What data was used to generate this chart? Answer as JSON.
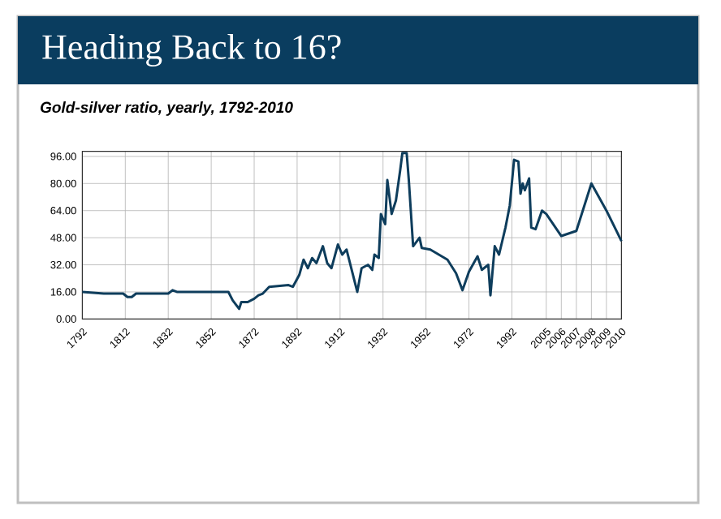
{
  "chart_data": {
    "type": "line",
    "title": "Heading Back to 16?",
    "subtitle": "Gold-silver ratio, yearly, 1792-2010",
    "categories": [
      "1792",
      null,
      null,
      null,
      null,
      null,
      null,
      null,
      null,
      null,
      null,
      null,
      null,
      null,
      null,
      null,
      null,
      null,
      null,
      null,
      "1812",
      null,
      null,
      null,
      null,
      null,
      null,
      null,
      null,
      null,
      null,
      null,
      null,
      null,
      null,
      null,
      null,
      null,
      null,
      null,
      "1832",
      null,
      null,
      null,
      null,
      null,
      null,
      null,
      null,
      null,
      null,
      null,
      null,
      null,
      null,
      null,
      null,
      null,
      null,
      null,
      "1852",
      null,
      null,
      null,
      null,
      null,
      null,
      null,
      null,
      null,
      null,
      null,
      null,
      null,
      null,
      null,
      null,
      null,
      null,
      null,
      "1872",
      null,
      null,
      null,
      null,
      null,
      null,
      null,
      null,
      null,
      null,
      null,
      null,
      null,
      null,
      null,
      null,
      null,
      null,
      null,
      "1892",
      null,
      null,
      null,
      null,
      null,
      null,
      null,
      null,
      null,
      null,
      null,
      null,
      null,
      null,
      null,
      null,
      null,
      null,
      null,
      "1912",
      null,
      null,
      null,
      null,
      null,
      null,
      null,
      null,
      null,
      null,
      null,
      null,
      null,
      null,
      null,
      null,
      null,
      null,
      null,
      "1932",
      null,
      null,
      null,
      null,
      null,
      null,
      null,
      null,
      null,
      null,
      null,
      null,
      null,
      null,
      null,
      null,
      null,
      null,
      null,
      "1952",
      null,
      null,
      null,
      null,
      null,
      null,
      null,
      null,
      null,
      null,
      null,
      null,
      null,
      null,
      null,
      null,
      null,
      null,
      null,
      "1972",
      null,
      null,
      null,
      null,
      null,
      null,
      null,
      null,
      null,
      null,
      null,
      null,
      null,
      null,
      null,
      null,
      null,
      null,
      null,
      "1992",
      null,
      null,
      null,
      null,
      null,
      null,
      null,
      null,
      null,
      null,
      null,
      null,
      null,
      null,
      null,
      "2005",
      null,
      null,
      null,
      null,
      null,
      null,
      "2006",
      null,
      null,
      null,
      null,
      null,
      null,
      "2007",
      null,
      null,
      null,
      null,
      null,
      null,
      "2008",
      null,
      null,
      null,
      null,
      null,
      null,
      "2009",
      null,
      null,
      null,
      null,
      null,
      null,
      "2010"
    ],
    "series": [
      {
        "color": "#0e3d5c",
        "values": [
          16,
          null,
          null,
          null,
          null,
          null,
          null,
          null,
          null,
          null,
          15,
          null,
          null,
          null,
          null,
          null,
          null,
          null,
          null,
          15,
          null,
          13,
          null,
          13,
          null,
          15,
          null,
          null,
          null,
          null,
          null,
          null,
          null,
          null,
          null,
          15,
          null,
          null,
          null,
          null,
          15,
          null,
          17,
          null,
          16,
          null,
          null,
          null,
          null,
          null,
          null,
          null,
          null,
          null,
          null,
          16,
          null,
          null,
          null,
          null,
          null,
          null,
          null,
          null,
          null,
          null,
          null,
          null,
          16,
          null,
          11,
          null,
          null,
          6,
          10,
          null,
          null,
          10,
          null,
          null,
          12,
          null,
          14,
          null,
          15,
          null,
          null,
          19,
          null,
          null,
          null,
          null,
          null,
          null,
          null,
          null,
          20,
          null,
          19,
          null,
          null,
          26,
          null,
          35,
          null,
          30,
          null,
          36,
          null,
          33,
          null,
          null,
          43,
          null,
          33,
          null,
          30,
          null,
          null,
          44,
          null,
          38,
          null,
          41,
          null,
          null,
          null,
          null,
          16,
          null,
          30,
          null,
          null,
          32,
          null,
          29,
          38,
          null,
          36,
          62,
          null,
          56,
          82,
          null,
          62,
          null,
          70,
          null,
          88,
          98,
          null,
          98,
          82,
          null,
          43,
          null,
          null,
          48,
          42,
          null,
          null,
          null,
          41,
          null,
          null,
          null,
          38,
          null,
          null,
          null,
          35,
          null,
          null,
          null,
          27,
          null,
          null,
          17,
          null,
          null,
          28,
          null,
          null,
          null,
          37,
          null,
          29,
          null,
          null,
          32,
          14,
          null,
          43,
          null,
          38,
          null,
          null,
          54,
          null,
          67,
          null,
          94,
          null,
          93,
          74,
          80,
          76,
          null,
          83,
          54,
          null,
          53,
          null,
          null,
          64,
          null,
          62,
          null,
          null,
          null,
          null,
          null,
          null,
          49,
          null,
          null,
          null,
          null,
          null,
          null,
          52,
          null,
          null,
          null,
          null,
          null,
          null,
          80,
          null,
          null,
          null,
          null,
          null,
          null,
          64,
          null,
          null,
          null,
          null,
          null,
          null,
          46
        ]
      }
    ],
    "ylim": [
      0,
      99
    ],
    "yticks": [
      {
        "value": 0,
        "label": "0.00"
      },
      {
        "value": 16,
        "label": "16.00"
      },
      {
        "value": 32,
        "label": "32.00"
      },
      {
        "value": 48,
        "label": "48.00"
      },
      {
        "value": 64,
        "label": "64.00"
      },
      {
        "value": 80,
        "label": "80.00"
      },
      {
        "value": 96,
        "label": "96.00"
      }
    ],
    "grid": true
  }
}
